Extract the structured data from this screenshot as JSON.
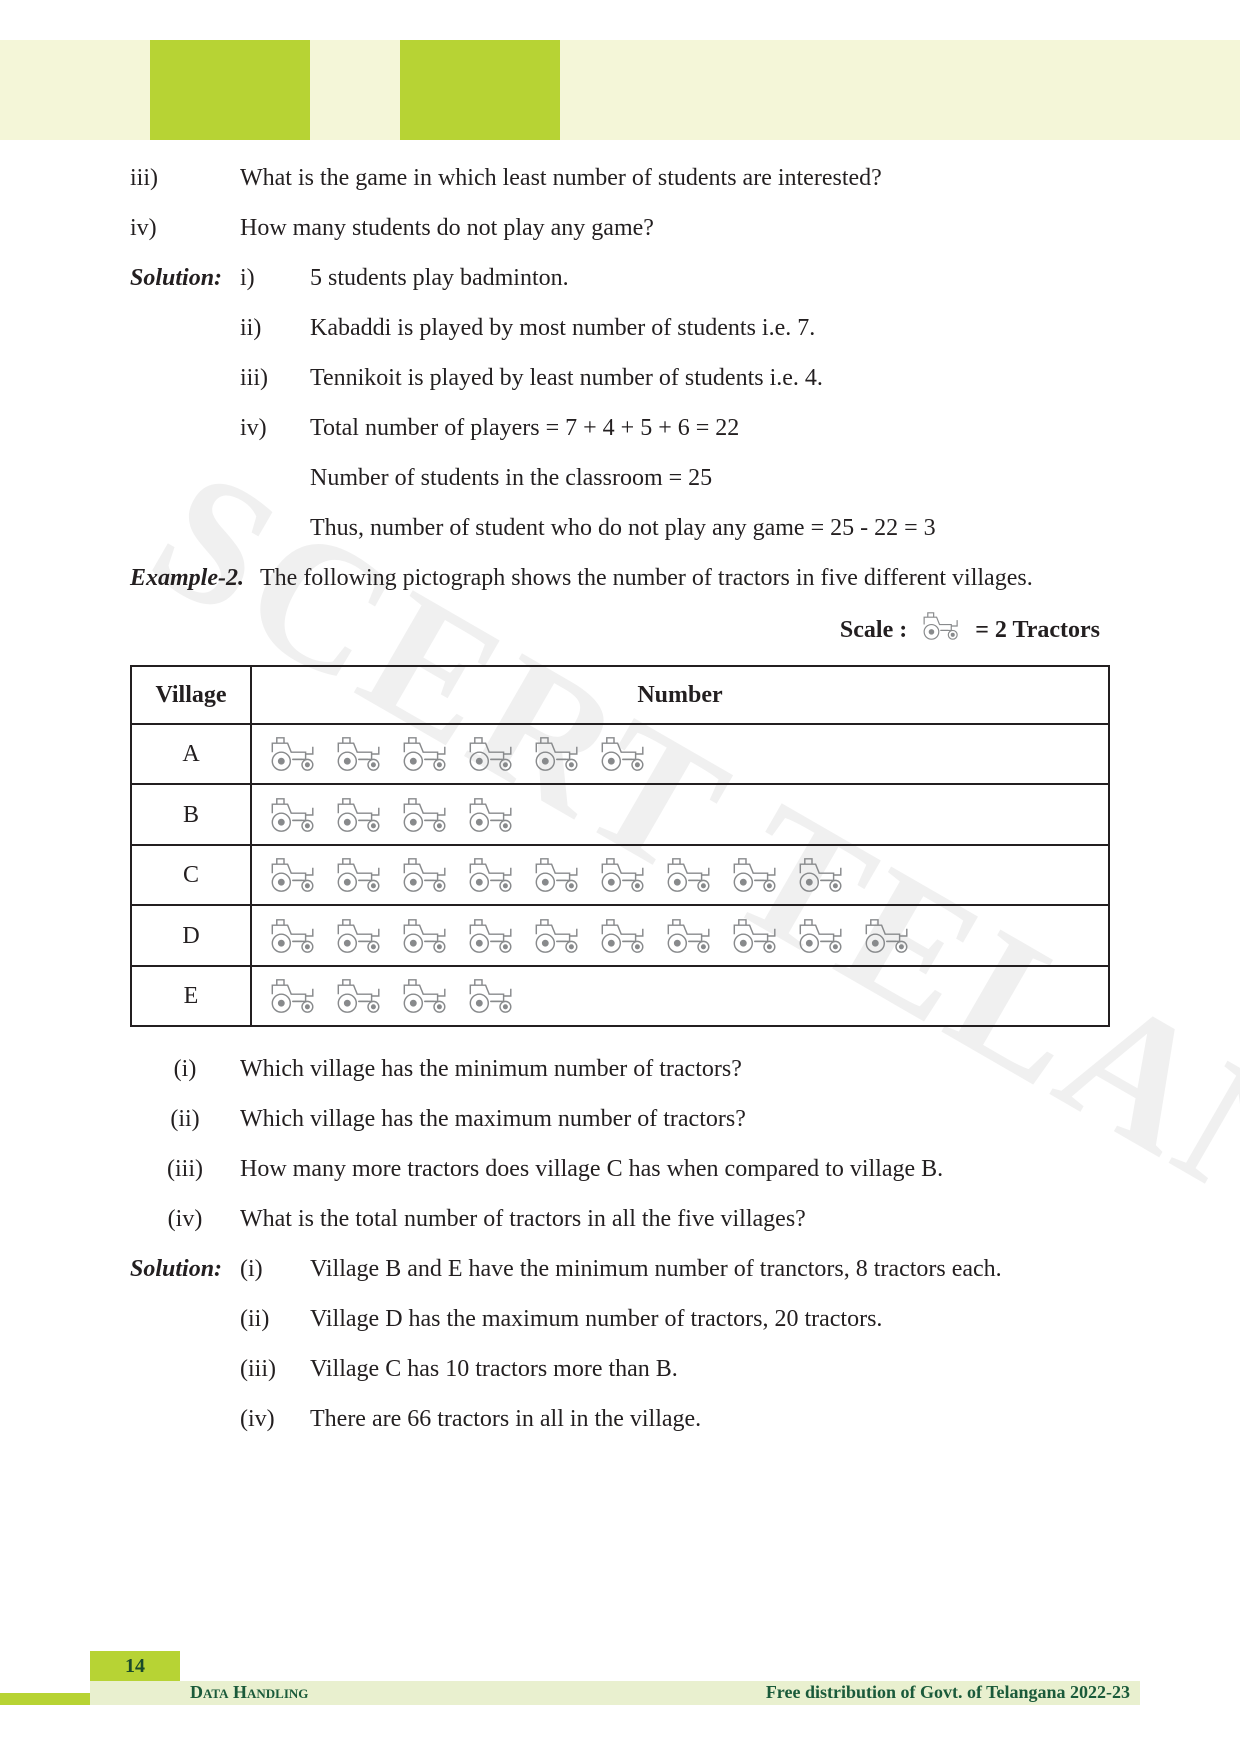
{
  "watermark": "SCERT TELANGANA",
  "questions_top": [
    {
      "num": "iii)",
      "text": "What is the game in which least number of students are interested?"
    },
    {
      "num": "iv)",
      "text": "How many students do not play any game?"
    }
  ],
  "solution1_label": "Solution:",
  "solution1": [
    {
      "num": "i)",
      "text": "5 students play badminton."
    },
    {
      "num": "ii)",
      "text": "Kabaddi is played by most number of students i.e. 7."
    },
    {
      "num": "iii)",
      "text": "Tennikoit is played by least number of students i.e. 4."
    },
    {
      "num": "iv)",
      "text": "Total number of players = 7 + 4 + 5 + 6 = 22"
    },
    {
      "num": "",
      "text": "Number of students in the classroom     = 25"
    },
    {
      "num": "",
      "text": "Thus, number of student who do not play any game   = 25 - 22 = 3"
    }
  ],
  "example2_label": "Example-2.",
  "example2_text": "The following pictograph shows the number of tractors in five different villages.",
  "scale_prefix": "Scale : ",
  "scale_suffix": " = 2 Tractors",
  "table": {
    "head_village": "Village",
    "head_number": "Number",
    "rows": [
      {
        "village": "A",
        "count": 6
      },
      {
        "village": "B",
        "count": 4
      },
      {
        "village": "C",
        "count": 9
      },
      {
        "village": "D",
        "count": 10
      },
      {
        "village": "E",
        "count": 4
      }
    ]
  },
  "questions2": [
    {
      "num": "(i)",
      "text": "Which village has the minimum number of tractors?"
    },
    {
      "num": "(ii)",
      "text": "Which village has the maximum number of tractors?"
    },
    {
      "num": "(iii)",
      "text": "How many more tractors does village C has when compared to village B."
    },
    {
      "num": "(iv)",
      "text": "What is the total number of tractors in all the five villages?"
    }
  ],
  "solution2_label": "Solution:",
  "solution2": [
    {
      "num": "(i)",
      "text": "Village B and E have the minimum number of tranctors, 8 tractors each."
    },
    {
      "num": "(ii)",
      "text": "Village D has the maximum number of tractors, 20 tractors."
    },
    {
      "num": "(iii)",
      "text": "Village C has 10 tractors more than B."
    },
    {
      "num": "(iv)",
      "text": "There are 66 tractors in all in the village."
    }
  ],
  "footer": {
    "page": "14",
    "chapter": "Data Handling",
    "distrib": "Free distribution of Govt. of  Telangana 2022-23"
  },
  "colors": {
    "header_bg": "#f4f6d8",
    "block_bg": "#b7d334",
    "text": "#231f20",
    "tractor": "#888a8c",
    "footer_shade": "#e9f0cf",
    "footer_text": "#1a5a3a"
  }
}
